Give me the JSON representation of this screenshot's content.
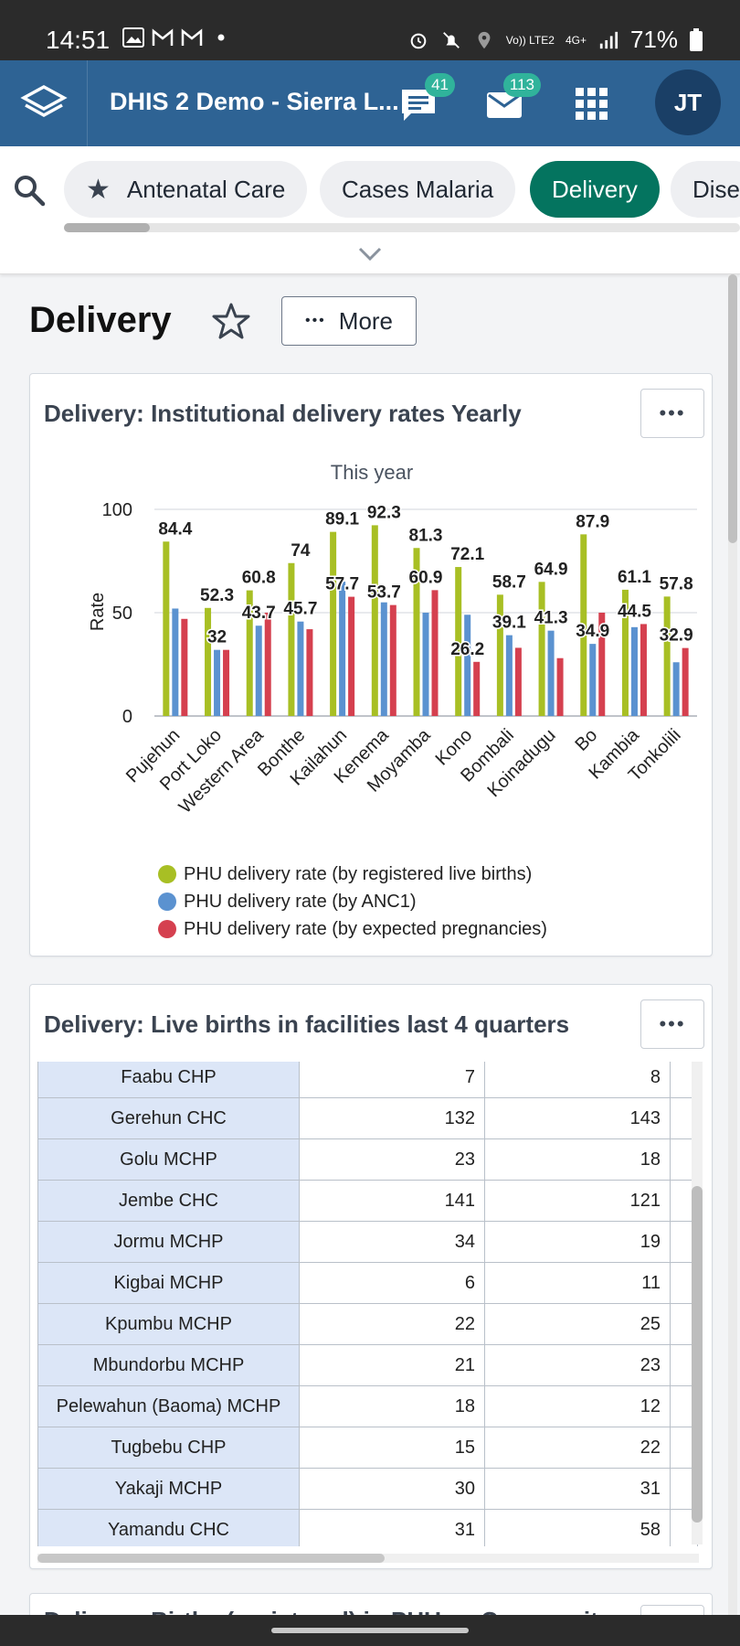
{
  "status_bar": {
    "time": "14:51",
    "network": "Vo)) LTE2",
    "data_type": "4G+",
    "battery": "71%"
  },
  "header": {
    "app_title": "DHIS 2 Demo - Sierra L...",
    "messages_badge": "41",
    "email_badge": "113",
    "avatar_initials": "JT"
  },
  "dashboards": {
    "chips": [
      "Antenatal Care",
      "Cases Malaria",
      "Delivery",
      "Dise"
    ],
    "selected": "Delivery"
  },
  "page": {
    "title": "Delivery",
    "more_label": "More",
    "menu_glyph": "•••"
  },
  "chart_card": {
    "title": "Delivery: Institutional delivery rates Yearly",
    "chart_data": {
      "type": "bar",
      "title": "",
      "subtitle": "This year",
      "xlabel": "",
      "ylabel": "Rate",
      "ylim": [
        0,
        100
      ],
      "yticks": [
        "0",
        "50",
        "100"
      ],
      "categories": [
        "Pujehun",
        "Port Loko",
        "Western Area",
        "Bonthe",
        "Kailahun",
        "Kenema",
        "Moyamba",
        "Kono",
        "Bombali",
        "Koinadugu",
        "Bo",
        "Kambia",
        "Tonkolili"
      ],
      "series": [
        {
          "name": "PHU delivery rate (by registered live births)",
          "color": "#a8bf24",
          "values": [
            84.4,
            52.3,
            60.8,
            74,
            89.1,
            92.3,
            81.3,
            72.1,
            58.7,
            64.9,
            87.9,
            61.1,
            57.8
          ]
        },
        {
          "name": "PHU delivery rate (by ANC1)",
          "color": "#5b92d0",
          "values": [
            52,
            32,
            43.7,
            45.7,
            65,
            55,
            50,
            49,
            39.1,
            41.3,
            34.9,
            43,
            26
          ]
        },
        {
          "name": "PHU delivery rate (by expected pregnancies)",
          "color": "#d5404f",
          "values": [
            47,
            32,
            50,
            42,
            57.7,
            53.7,
            60.9,
            26.2,
            33,
            28,
            50,
            44.5,
            32.9
          ]
        }
      ],
      "labels": [
        {
          "cat": 0,
          "text": "84.4",
          "value": 84.4
        },
        {
          "cat": 1,
          "text": "52.3",
          "value": 52.3
        },
        {
          "cat": 1,
          "text": "32",
          "value": 32
        },
        {
          "cat": 2,
          "text": "60.8",
          "value": 60.8
        },
        {
          "cat": 2,
          "text": "43.7",
          "value": 43.7
        },
        {
          "cat": 3,
          "text": "74",
          "value": 74
        },
        {
          "cat": 3,
          "text": "45.7",
          "value": 45.7
        },
        {
          "cat": 4,
          "text": "89.1",
          "value": 89.1
        },
        {
          "cat": 4,
          "text": "57.7",
          "value": 57.7
        },
        {
          "cat": 5,
          "text": "92.3",
          "value": 92.3
        },
        {
          "cat": 5,
          "text": "53.7",
          "value": 53.7
        },
        {
          "cat": 6,
          "text": "81.3",
          "value": 81.3
        },
        {
          "cat": 6,
          "text": "60.9",
          "value": 60.9
        },
        {
          "cat": 7,
          "text": "72.1",
          "value": 72.1
        },
        {
          "cat": 7,
          "text": "26.2",
          "value": 26.2
        },
        {
          "cat": 8,
          "text": "58.7",
          "value": 58.7
        },
        {
          "cat": 8,
          "text": "39.1",
          "value": 39.1
        },
        {
          "cat": 9,
          "text": "64.9",
          "value": 64.9
        },
        {
          "cat": 9,
          "text": "41.3",
          "value": 41.3
        },
        {
          "cat": 10,
          "text": "87.9",
          "value": 87.9
        },
        {
          "cat": 10,
          "text": "34.9",
          "value": 34.9
        },
        {
          "cat": 11,
          "text": "61.1",
          "value": 61.1
        },
        {
          "cat": 11,
          "text": "44.5",
          "value": 44.5
        },
        {
          "cat": 12,
          "text": "57.8",
          "value": 57.8
        },
        {
          "cat": 12,
          "text": "32.9",
          "value": 32.9
        }
      ],
      "grid": true,
      "legend_position": "bottom"
    }
  },
  "table_card": {
    "title": "Delivery: Live births in facilities last 4 quarters",
    "rows": [
      [
        "Faabu CHP",
        "7",
        "8"
      ],
      [
        "Gerehun CHC",
        "132",
        "143"
      ],
      [
        "Golu MCHP",
        "23",
        "18"
      ],
      [
        "Jembe CHC",
        "141",
        "121"
      ],
      [
        "Jormu MCHP",
        "34",
        "19"
      ],
      [
        "Kigbai MCHP",
        "6",
        "11"
      ],
      [
        "Kpumbu MCHP",
        "22",
        "25"
      ],
      [
        "Mbundorbu MCHP",
        "21",
        "23"
      ],
      [
        "Pelewahun (Baoma) MCHP",
        "18",
        "12"
      ],
      [
        "Tugbebu CHP",
        "15",
        "22"
      ],
      [
        "Yakaji MCHP",
        "30",
        "31"
      ],
      [
        "Yamandu CHC",
        "31",
        "58"
      ]
    ]
  },
  "next_card": {
    "title": "Delivery: Births (registered) in PHU vs Community"
  }
}
